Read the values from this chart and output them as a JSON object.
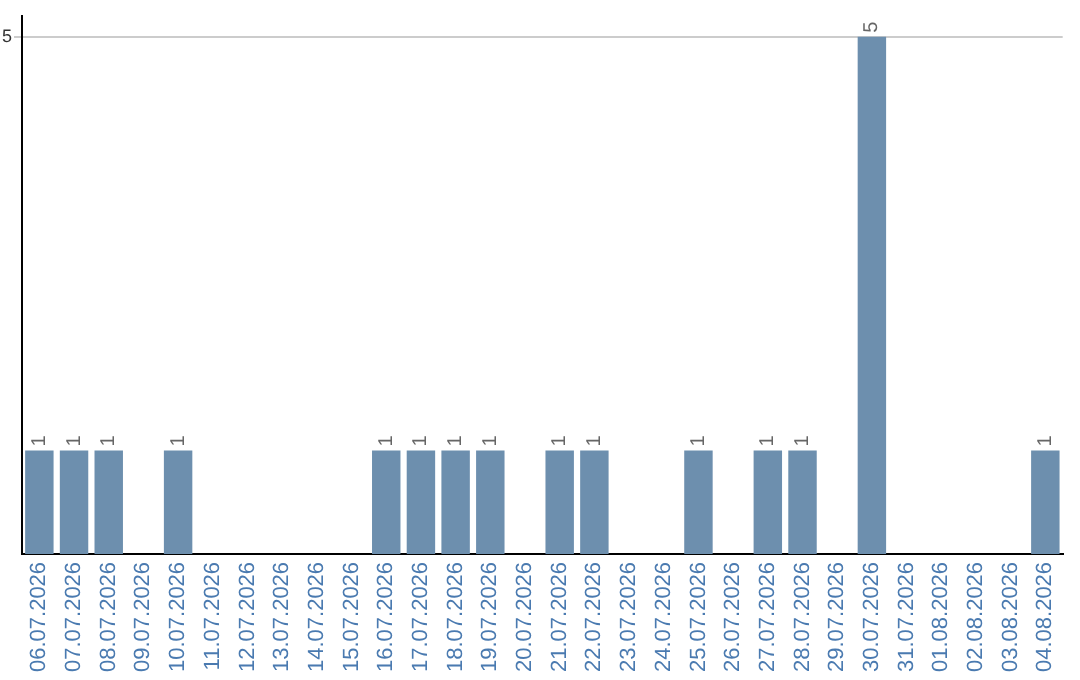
{
  "chart_data": {
    "type": "bar",
    "categories": [
      "06.07.2026",
      "07.07.2026",
      "08.07.2026",
      "09.07.2026",
      "10.07.2026",
      "11.07.2026",
      "12.07.2026",
      "13.07.2026",
      "14.07.2026",
      "15.07.2026",
      "16.07.2026",
      "17.07.2026",
      "18.07.2026",
      "19.07.2026",
      "20.07.2026",
      "21.07.2026",
      "22.07.2026",
      "23.07.2026",
      "24.07.2026",
      "25.07.2026",
      "26.07.2026",
      "27.07.2026",
      "28.07.2026",
      "29.07.2026",
      "30.07.2026",
      "31.07.2026",
      "01.08.2026",
      "02.08.2026",
      "03.08.2026",
      "04.08.2026"
    ],
    "values": [
      1,
      1,
      1,
      0,
      1,
      0,
      0,
      0,
      0,
      0,
      1,
      1,
      1,
      1,
      0,
      1,
      1,
      0,
      0,
      1,
      0,
      1,
      1,
      0,
      5,
      0,
      0,
      0,
      0,
      1
    ],
    "value_labels": [
      "1",
      "1",
      "1",
      null,
      "1",
      null,
      null,
      null,
      null,
      null,
      "1",
      "1",
      "1",
      "1",
      null,
      "1",
      "1",
      null,
      null,
      "1",
      null,
      "1",
      "1",
      null,
      "5",
      null,
      null,
      null,
      null,
      "1"
    ],
    "color": "#6d8fae",
    "ylim": [
      0,
      5.2
    ],
    "yticks": [
      5
    ],
    "grid": "y",
    "legend": false
  }
}
